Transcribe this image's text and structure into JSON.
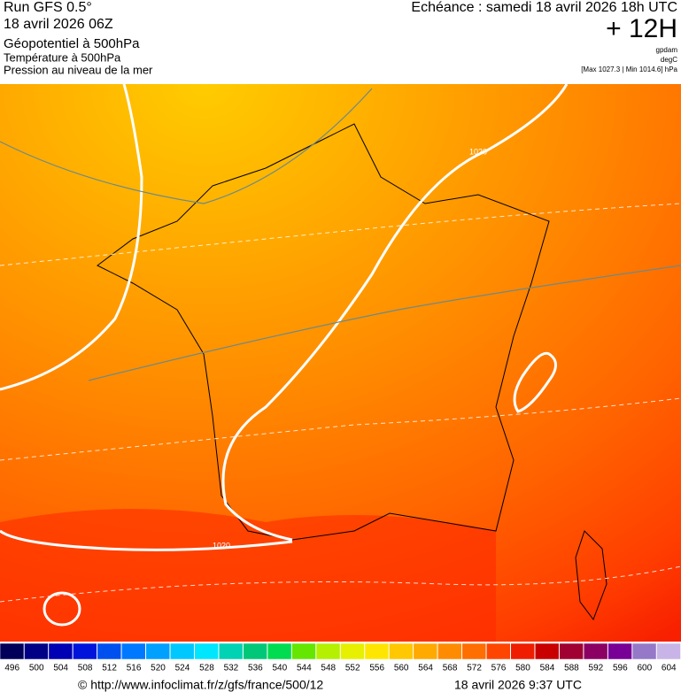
{
  "header": {
    "left": [
      "Run GFS 0.5°",
      "18 avril 2026 06Z",
      "Géopotentiel à 500hPa",
      "Température à 500hPa",
      "Pression au niveau de la mer"
    ],
    "right": {
      "title": "Echéance : samedi 18 avril 2026 18h UTC",
      "lead": "+ 12H",
      "units": [
        "gpdam",
        "degC"
      ],
      "range": "[Max 1027.3 | Min 1014.6] hPa"
    }
  },
  "map": {
    "isobar_labels": [
      "1020",
      "1020"
    ]
  },
  "colorbar": {
    "labels": [
      496,
      500,
      504,
      508,
      512,
      516,
      520,
      524,
      528,
      532,
      536,
      540,
      544,
      548,
      552,
      556,
      560,
      564,
      568,
      572,
      576,
      580,
      584,
      588,
      592,
      596,
      600,
      604
    ],
    "colors": [
      "#00005a",
      "#000087",
      "#0000b4",
      "#0014dc",
      "#0050f0",
      "#0078ff",
      "#00a0ff",
      "#00c8ff",
      "#00e6ff",
      "#00d2b4",
      "#00c878",
      "#00dc50",
      "#64e600",
      "#b4f000",
      "#e6f000",
      "#ffe600",
      "#ffc800",
      "#ffaa00",
      "#ff8c00",
      "#ff6e00",
      "#ff4600",
      "#f01e00",
      "#c80000",
      "#a00032",
      "#8c0064",
      "#780096",
      "#9678c8",
      "#c8b4e6"
    ]
  },
  "footer": {
    "url": "© http://www.infoclimat.fr/z/gfs/france/500/12",
    "date": "18 avril 2026  9:37 UTC"
  }
}
